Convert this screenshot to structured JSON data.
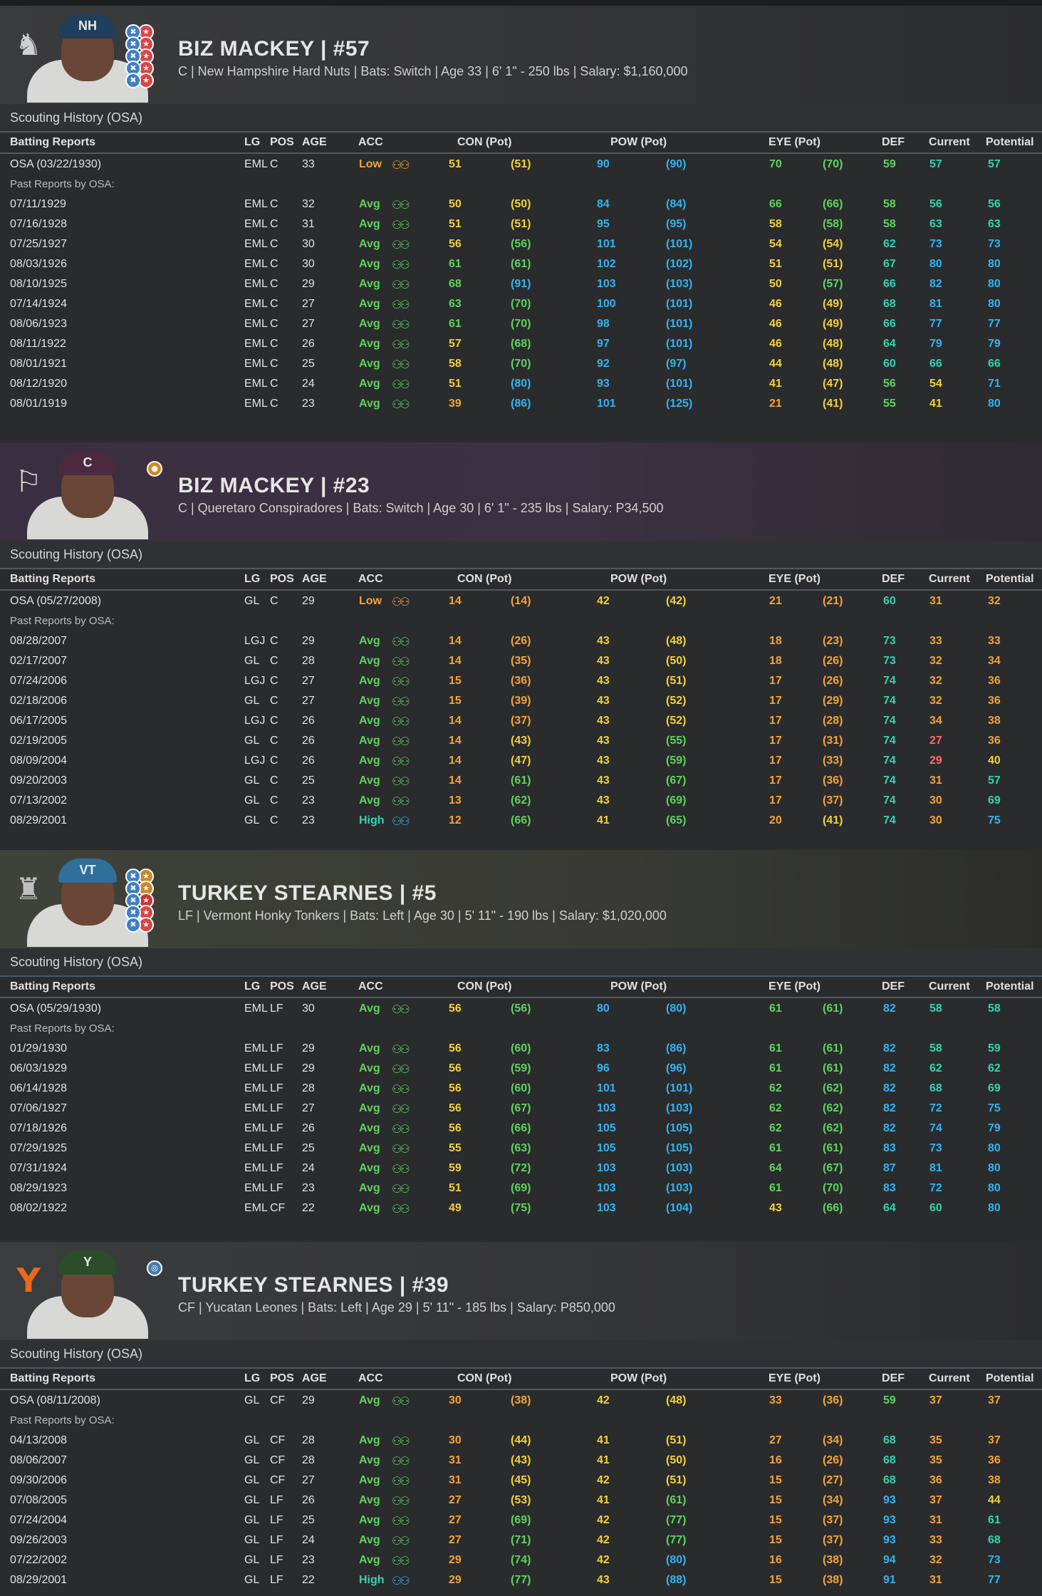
{
  "headers": {
    "section_title": "Scouting History (OSA)",
    "cols": [
      "Batting Reports",
      "LG",
      "POS",
      "AGE",
      "ACC",
      "CON (Pot)",
      "POW (Pot)",
      "EYE (Pot)",
      "DEF",
      "Current",
      "Potential"
    ],
    "past_label": "Past Reports by OSA:"
  },
  "panels": [
    {
      "name": "BIZ MACKEY  |  #57",
      "info": "C | New Hampshire Hard Nuts  |  Bats: Switch  |  Age 33  |  6' 1\" - 250 lbs  |  Salary: $1,160,000",
      "cap": "NH",
      "rows": [
        [
          "OSA (03/22/1930)",
          "EML",
          "C",
          "33",
          "Low",
          "51",
          "(51)",
          "90",
          "(90)",
          "70",
          "(70)",
          "59",
          "57",
          "57"
        ],
        [
          "07/11/1929",
          "EML",
          "C",
          "32",
          "Avg",
          "50",
          "(50)",
          "84",
          "(84)",
          "66",
          "(66)",
          "58",
          "56",
          "56"
        ],
        [
          "07/16/1928",
          "EML",
          "C",
          "31",
          "Avg",
          "51",
          "(51)",
          "95",
          "(95)",
          "58",
          "(58)",
          "58",
          "63",
          "63"
        ],
        [
          "07/25/1927",
          "EML",
          "C",
          "30",
          "Avg",
          "56",
          "(56)",
          "101",
          "(101)",
          "54",
          "(54)",
          "62",
          "73",
          "73"
        ],
        [
          "08/03/1926",
          "EML",
          "C",
          "30",
          "Avg",
          "61",
          "(61)",
          "102",
          "(102)",
          "51",
          "(51)",
          "67",
          "80",
          "80"
        ],
        [
          "08/10/1925",
          "EML",
          "C",
          "29",
          "Avg",
          "68",
          "(91)",
          "103",
          "(103)",
          "50",
          "(57)",
          "66",
          "82",
          "80"
        ],
        [
          "07/14/1924",
          "EML",
          "C",
          "27",
          "Avg",
          "63",
          "(70)",
          "100",
          "(101)",
          "46",
          "(49)",
          "68",
          "81",
          "80"
        ],
        [
          "08/06/1923",
          "EML",
          "C",
          "27",
          "Avg",
          "61",
          "(70)",
          "98",
          "(101)",
          "46",
          "(49)",
          "66",
          "77",
          "77"
        ],
        [
          "08/11/1922",
          "EML",
          "C",
          "26",
          "Avg",
          "57",
          "(68)",
          "97",
          "(101)",
          "46",
          "(48)",
          "64",
          "79",
          "79"
        ],
        [
          "08/01/1921",
          "EML",
          "C",
          "25",
          "Avg",
          "58",
          "(70)",
          "92",
          "(97)",
          "44",
          "(48)",
          "60",
          "66",
          "66"
        ],
        [
          "08/12/1920",
          "EML",
          "C",
          "24",
          "Avg",
          "51",
          "(80)",
          "93",
          "(101)",
          "41",
          "(47)",
          "56",
          "54",
          "71"
        ],
        [
          "08/01/1919",
          "EML",
          "C",
          "23",
          "Avg",
          "39",
          "(86)",
          "101",
          "(125)",
          "21",
          "(41)",
          "55",
          "41",
          "80"
        ]
      ]
    },
    {
      "name": "BIZ MACKEY  |  #23",
      "info": "C | Queretaro Conspiradores  |  Bats: Switch  |  Age 30  |  6' 1\" - 235 lbs  |  Salary: P34,500",
      "cap": "C",
      "rows": [
        [
          "OSA (05/27/2008)",
          "GL",
          "C",
          "29",
          "Low",
          "14",
          "(14)",
          "42",
          "(42)",
          "21",
          "(21)",
          "60",
          "31",
          "32"
        ],
        [
          "08/28/2007",
          "LGJ",
          "C",
          "29",
          "Avg",
          "14",
          "(26)",
          "43",
          "(48)",
          "18",
          "(23)",
          "73",
          "33",
          "33"
        ],
        [
          "02/17/2007",
          "GL",
          "C",
          "28",
          "Avg",
          "14",
          "(35)",
          "43",
          "(50)",
          "18",
          "(26)",
          "73",
          "32",
          "34"
        ],
        [
          "07/24/2006",
          "LGJ",
          "C",
          "27",
          "Avg",
          "15",
          "(36)",
          "43",
          "(51)",
          "17",
          "(26)",
          "74",
          "32",
          "36"
        ],
        [
          "02/18/2006",
          "GL",
          "C",
          "27",
          "Avg",
          "15",
          "(39)",
          "43",
          "(52)",
          "17",
          "(29)",
          "74",
          "32",
          "36"
        ],
        [
          "06/17/2005",
          "LGJ",
          "C",
          "26",
          "Avg",
          "14",
          "(37)",
          "43",
          "(52)",
          "17",
          "(28)",
          "74",
          "34",
          "38"
        ],
        [
          "02/19/2005",
          "GL",
          "C",
          "26",
          "Avg",
          "14",
          "(43)",
          "43",
          "(55)",
          "17",
          "(31)",
          "74",
          "27",
          "36"
        ],
        [
          "08/09/2004",
          "LGJ",
          "C",
          "26",
          "Avg",
          "14",
          "(47)",
          "43",
          "(59)",
          "17",
          "(33)",
          "74",
          "29",
          "40"
        ],
        [
          "09/20/2003",
          "GL",
          "C",
          "25",
          "Avg",
          "14",
          "(61)",
          "43",
          "(67)",
          "17",
          "(36)",
          "74",
          "31",
          "57"
        ],
        [
          "07/13/2002",
          "GL",
          "C",
          "23",
          "Avg",
          "13",
          "(62)",
          "43",
          "(69)",
          "17",
          "(37)",
          "74",
          "30",
          "69"
        ],
        [
          "08/29/2001",
          "GL",
          "C",
          "23",
          "High",
          "12",
          "(66)",
          "41",
          "(65)",
          "20",
          "(41)",
          "74",
          "30",
          "75"
        ]
      ]
    },
    {
      "name": "TURKEY STEARNES  |  #5",
      "info": "LF | Vermont Honky Tonkers  |  Bats: Left  |  Age 30  |  5' 11\" - 190 lbs  |  Salary: $1,020,000",
      "cap": "VT",
      "rows": [
        [
          "OSA (05/29/1930)",
          "EML",
          "LF",
          "30",
          "Avg",
          "56",
          "(56)",
          "80",
          "(80)",
          "61",
          "(61)",
          "82",
          "58",
          "58"
        ],
        [
          "01/29/1930",
          "EML",
          "LF",
          "29",
          "Avg",
          "56",
          "(60)",
          "83",
          "(86)",
          "61",
          "(61)",
          "82",
          "58",
          "59"
        ],
        [
          "06/03/1929",
          "EML",
          "LF",
          "29",
          "Avg",
          "56",
          "(59)",
          "96",
          "(96)",
          "61",
          "(61)",
          "82",
          "62",
          "62"
        ],
        [
          "06/14/1928",
          "EML",
          "LF",
          "28",
          "Avg",
          "56",
          "(60)",
          "101",
          "(101)",
          "62",
          "(62)",
          "82",
          "68",
          "69"
        ],
        [
          "07/06/1927",
          "EML",
          "LF",
          "27",
          "Avg",
          "56",
          "(67)",
          "103",
          "(103)",
          "62",
          "(62)",
          "82",
          "72",
          "75"
        ],
        [
          "07/18/1926",
          "EML",
          "LF",
          "26",
          "Avg",
          "56",
          "(66)",
          "105",
          "(105)",
          "62",
          "(62)",
          "82",
          "74",
          "79"
        ],
        [
          "07/29/1925",
          "EML",
          "LF",
          "25",
          "Avg",
          "55",
          "(63)",
          "105",
          "(105)",
          "61",
          "(61)",
          "83",
          "73",
          "80"
        ],
        [
          "07/31/1924",
          "EML",
          "LF",
          "24",
          "Avg",
          "59",
          "(72)",
          "103",
          "(103)",
          "64",
          "(67)",
          "87",
          "81",
          "80"
        ],
        [
          "08/29/1923",
          "EML",
          "LF",
          "23",
          "Avg",
          "51",
          "(69)",
          "103",
          "(103)",
          "61",
          "(70)",
          "83",
          "72",
          "80"
        ],
        [
          "08/02/1922",
          "EML",
          "CF",
          "22",
          "Avg",
          "49",
          "(75)",
          "103",
          "(104)",
          "43",
          "(66)",
          "64",
          "60",
          "80"
        ]
      ]
    },
    {
      "name": "TURKEY STEARNES  |  #39",
      "info": "CF | Yucatan Leones  |  Bats: Left  |  Age 29  |  5' 11\" - 185 lbs  |  Salary: P850,000",
      "cap": "Y",
      "rows": [
        [
          "OSA (08/11/2008)",
          "GL",
          "CF",
          "29",
          "Avg",
          "30",
          "(38)",
          "42",
          "(48)",
          "33",
          "(36)",
          "59",
          "37",
          "37"
        ],
        [
          "04/13/2008",
          "GL",
          "CF",
          "28",
          "Avg",
          "30",
          "(44)",
          "41",
          "(51)",
          "27",
          "(34)",
          "68",
          "35",
          "37"
        ],
        [
          "08/06/2007",
          "GL",
          "CF",
          "28",
          "Avg",
          "31",
          "(43)",
          "41",
          "(50)",
          "16",
          "(26)",
          "68",
          "35",
          "36"
        ],
        [
          "09/30/2006",
          "GL",
          "CF",
          "27",
          "Avg",
          "31",
          "(45)",
          "42",
          "(51)",
          "15",
          "(27)",
          "68",
          "36",
          "38"
        ],
        [
          "07/08/2005",
          "GL",
          "LF",
          "26",
          "Avg",
          "27",
          "(53)",
          "41",
          "(61)",
          "15",
          "(34)",
          "93",
          "37",
          "44"
        ],
        [
          "07/24/2004",
          "GL",
          "LF",
          "25",
          "Avg",
          "27",
          "(69)",
          "42",
          "(77)",
          "15",
          "(37)",
          "93",
          "31",
          "61"
        ],
        [
          "09/26/2003",
          "GL",
          "LF",
          "24",
          "Avg",
          "27",
          "(71)",
          "42",
          "(77)",
          "15",
          "(37)",
          "93",
          "33",
          "68"
        ],
        [
          "07/22/2002",
          "GL",
          "LF",
          "23",
          "Avg",
          "29",
          "(74)",
          "42",
          "(80)",
          "16",
          "(38)",
          "94",
          "32",
          "73"
        ],
        [
          "08/29/2001",
          "GL",
          "LF",
          "22",
          "High",
          "29",
          "(77)",
          "43",
          "(88)",
          "15",
          "(38)",
          "91",
          "31",
          "77"
        ]
      ]
    }
  ],
  "colors": {
    "green": "#5fd35f",
    "blue": "#35b3ee",
    "yellow": "#f2d23a",
    "orange": "#f2a43a",
    "teal": "#36d2b2",
    "red": "#ff6b6b"
  },
  "icons": {
    "binoculars": "binoculars-icon",
    "team_logo": "team-logo-icon",
    "rating_badge": "rating-badge-icon"
  }
}
